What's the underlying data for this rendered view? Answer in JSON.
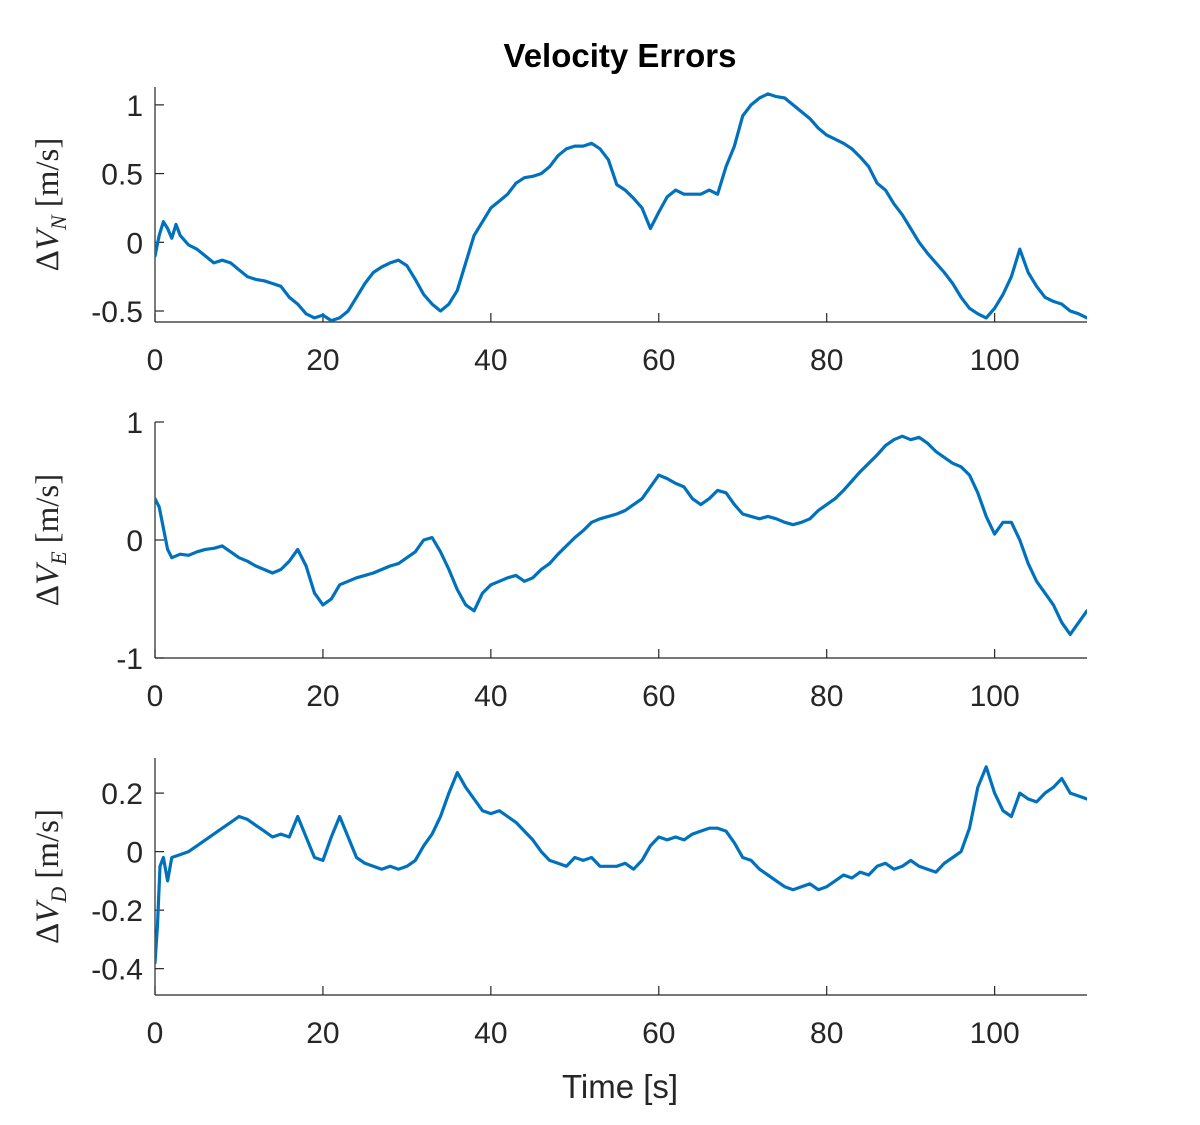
{
  "chart_data": [
    {
      "type": "line",
      "title": "Velocity Errors",
      "xlabel": "",
      "ylabel": {
        "delta": "Δ",
        "symbol": "V",
        "subscript": "N",
        "units": "[m/s]"
      },
      "xlim": [
        0,
        111
      ],
      "ylim": [
        -0.58,
        1.13
      ],
      "xticks": [
        0,
        20,
        40,
        60,
        80,
        100
      ],
      "xtick_labels": [
        "0",
        "20",
        "40",
        "60",
        "80",
        "100"
      ],
      "yticks": [
        -0.5,
        0,
        0.5,
        1
      ],
      "ytick_labels": [
        "-0.5",
        "0",
        "0.5",
        "1"
      ],
      "color": "#0072BD",
      "series": [
        {
          "name": "ΔV_N",
          "x": [
            0,
            0.5,
            1,
            1.5,
            2,
            2.5,
            3,
            4,
            5,
            6,
            7,
            8,
            9,
            10,
            11,
            12,
            13,
            14,
            15,
            16,
            17,
            18,
            19,
            20,
            21,
            22,
            23,
            24,
            25,
            26,
            27,
            28,
            29,
            30,
            31,
            32,
            33,
            34,
            35,
            36,
            37,
            38,
            39,
            40,
            41,
            42,
            43,
            44,
            45,
            46,
            47,
            48,
            49,
            50,
            51,
            52,
            53,
            54,
            55,
            56,
            57,
            58,
            59,
            60,
            61,
            62,
            63,
            64,
            65,
            66,
            67,
            68,
            69,
            70,
            71,
            72,
            73,
            74,
            75,
            76,
            77,
            78,
            79,
            80,
            81,
            82,
            83,
            84,
            85,
            86,
            87,
            88,
            89,
            90,
            91,
            92,
            93,
            94,
            95,
            96,
            97,
            98,
            99,
            100,
            101,
            102,
            103,
            104,
            105,
            106,
            107,
            108,
            109,
            110,
            111
          ],
          "y": [
            -0.1,
            0.05,
            0.15,
            0.1,
            0.03,
            0.13,
            0.05,
            -0.02,
            -0.05,
            -0.1,
            -0.15,
            -0.13,
            -0.15,
            -0.2,
            -0.25,
            -0.27,
            -0.28,
            -0.3,
            -0.32,
            -0.4,
            -0.45,
            -0.52,
            -0.55,
            -0.53,
            -0.57,
            -0.55,
            -0.5,
            -0.4,
            -0.3,
            -0.22,
            -0.18,
            -0.15,
            -0.13,
            -0.17,
            -0.27,
            -0.38,
            -0.45,
            -0.5,
            -0.45,
            -0.35,
            -0.15,
            0.05,
            0.15,
            0.25,
            0.3,
            0.35,
            0.43,
            0.47,
            0.48,
            0.5,
            0.55,
            0.63,
            0.68,
            0.7,
            0.7,
            0.72,
            0.68,
            0.6,
            0.42,
            0.38,
            0.32,
            0.25,
            0.1,
            0.22,
            0.33,
            0.38,
            0.35,
            0.35,
            0.35,
            0.38,
            0.35,
            0.55,
            0.7,
            0.92,
            1.0,
            1.05,
            1.08,
            1.06,
            1.05,
            1.0,
            0.95,
            0.9,
            0.83,
            0.78,
            0.75,
            0.72,
            0.68,
            0.62,
            0.55,
            0.43,
            0.38,
            0.28,
            0.2,
            0.1,
            0.0,
            -0.08,
            -0.15,
            -0.22,
            -0.3,
            -0.4,
            -0.48,
            -0.52,
            -0.55,
            -0.48,
            -0.38,
            -0.25,
            -0.05,
            -0.22,
            -0.32,
            -0.4,
            -0.43,
            -0.45,
            -0.5,
            -0.52,
            -0.55
          ]
        }
      ]
    },
    {
      "type": "line",
      "title": "",
      "xlabel": "",
      "ylabel": {
        "delta": "Δ",
        "symbol": "V",
        "subscript": "E",
        "units": "[m/s]"
      },
      "xlim": [
        0,
        111
      ],
      "ylim": [
        -1,
        1
      ],
      "xticks": [
        0,
        20,
        40,
        60,
        80,
        100
      ],
      "xtick_labels": [
        "0",
        "20",
        "40",
        "60",
        "80",
        "100"
      ],
      "yticks": [
        -1,
        0,
        1
      ],
      "ytick_labels": [
        "-1",
        "0",
        "1"
      ],
      "color": "#0072BD",
      "series": [
        {
          "name": "ΔV_E",
          "x": [
            0,
            0.5,
            1,
            1.5,
            2,
            3,
            4,
            5,
            6,
            7,
            8,
            9,
            10,
            11,
            12,
            13,
            14,
            15,
            16,
            17,
            18,
            19,
            20,
            21,
            22,
            23,
            24,
            25,
            26,
            27,
            28,
            29,
            30,
            31,
            32,
            33,
            34,
            35,
            36,
            37,
            38,
            39,
            40,
            41,
            42,
            43,
            44,
            45,
            46,
            47,
            48,
            49,
            50,
            51,
            52,
            53,
            54,
            55,
            56,
            57,
            58,
            59,
            60,
            61,
            62,
            63,
            64,
            65,
            66,
            67,
            68,
            69,
            70,
            71,
            72,
            73,
            74,
            75,
            76,
            77,
            78,
            79,
            80,
            81,
            82,
            83,
            84,
            85,
            86,
            87,
            88,
            89,
            90,
            91,
            92,
            93,
            94,
            95,
            96,
            97,
            98,
            99,
            100,
            101,
            102,
            103,
            104,
            105,
            106,
            107,
            108,
            109,
            110,
            111
          ],
          "y": [
            0.35,
            0.28,
            0.1,
            -0.08,
            -0.15,
            -0.12,
            -0.13,
            -0.1,
            -0.08,
            -0.07,
            -0.05,
            -0.1,
            -0.15,
            -0.18,
            -0.22,
            -0.25,
            -0.28,
            -0.25,
            -0.18,
            -0.08,
            -0.22,
            -0.45,
            -0.55,
            -0.5,
            -0.38,
            -0.35,
            -0.32,
            -0.3,
            -0.28,
            -0.25,
            -0.22,
            -0.2,
            -0.15,
            -0.1,
            0.0,
            0.02,
            -0.1,
            -0.25,
            -0.42,
            -0.55,
            -0.6,
            -0.45,
            -0.38,
            -0.35,
            -0.32,
            -0.3,
            -0.35,
            -0.32,
            -0.25,
            -0.2,
            -0.12,
            -0.05,
            0.02,
            0.08,
            0.15,
            0.18,
            0.2,
            0.22,
            0.25,
            0.3,
            0.35,
            0.45,
            0.55,
            0.52,
            0.48,
            0.45,
            0.35,
            0.3,
            0.35,
            0.42,
            0.4,
            0.3,
            0.22,
            0.2,
            0.18,
            0.2,
            0.18,
            0.15,
            0.13,
            0.15,
            0.18,
            0.25,
            0.3,
            0.35,
            0.42,
            0.5,
            0.58,
            0.65,
            0.72,
            0.8,
            0.85,
            0.88,
            0.85,
            0.87,
            0.82,
            0.75,
            0.7,
            0.65,
            0.62,
            0.55,
            0.4,
            0.2,
            0.05,
            0.15,
            0.15,
            0.0,
            -0.2,
            -0.35,
            -0.45,
            -0.55,
            -0.7,
            -0.8,
            -0.7,
            -0.6
          ]
        }
      ]
    },
    {
      "type": "line",
      "title": "",
      "xlabel": "Time [s]",
      "ylabel": {
        "delta": "Δ",
        "symbol": "V",
        "subscript": "D",
        "units": "[m/s]"
      },
      "xlim": [
        0,
        111
      ],
      "ylim": [
        -0.49,
        0.32
      ],
      "xticks": [
        0,
        20,
        40,
        60,
        80,
        100
      ],
      "xtick_labels": [
        "0",
        "20",
        "40",
        "60",
        "80",
        "100"
      ],
      "yticks": [
        -0.4,
        -0.2,
        0,
        0.2
      ],
      "ytick_labels": [
        "-0.4",
        "-0.2",
        "0",
        "0.2"
      ],
      "color": "#0072BD",
      "series": [
        {
          "name": "ΔV_D",
          "x": [
            0,
            0.3,
            0.6,
            1,
            1.5,
            2,
            3,
            4,
            5,
            6,
            7,
            8,
            9,
            10,
            11,
            12,
            13,
            14,
            15,
            16,
            17,
            18,
            19,
            20,
            21,
            22,
            23,
            24,
            25,
            26,
            27,
            28,
            29,
            30,
            31,
            32,
            33,
            34,
            35,
            36,
            37,
            38,
            39,
            40,
            41,
            42,
            43,
            44,
            45,
            46,
            47,
            48,
            49,
            50,
            51,
            52,
            53,
            54,
            55,
            56,
            57,
            58,
            59,
            60,
            61,
            62,
            63,
            64,
            65,
            66,
            67,
            68,
            69,
            70,
            71,
            72,
            73,
            74,
            75,
            76,
            77,
            78,
            79,
            80,
            81,
            82,
            83,
            84,
            85,
            86,
            87,
            88,
            89,
            90,
            91,
            92,
            93,
            94,
            95,
            96,
            97,
            98,
            99,
            100,
            101,
            102,
            103,
            104,
            105,
            106,
            107,
            108,
            109,
            110,
            111
          ],
          "y": [
            -0.38,
            -0.25,
            -0.05,
            -0.02,
            -0.1,
            -0.02,
            -0.01,
            0.0,
            0.02,
            0.04,
            0.06,
            0.08,
            0.1,
            0.12,
            0.11,
            0.09,
            0.07,
            0.05,
            0.06,
            0.05,
            0.12,
            0.05,
            -0.02,
            -0.03,
            0.05,
            0.12,
            0.05,
            -0.02,
            -0.04,
            -0.05,
            -0.06,
            -0.05,
            -0.06,
            -0.05,
            -0.03,
            0.02,
            0.06,
            0.12,
            0.2,
            0.27,
            0.22,
            0.18,
            0.14,
            0.13,
            0.14,
            0.12,
            0.1,
            0.07,
            0.04,
            0.0,
            -0.03,
            -0.04,
            -0.05,
            -0.02,
            -0.03,
            -0.02,
            -0.05,
            -0.05,
            -0.05,
            -0.04,
            -0.06,
            -0.03,
            0.02,
            0.05,
            0.04,
            0.05,
            0.04,
            0.06,
            0.07,
            0.08,
            0.08,
            0.07,
            0.03,
            -0.02,
            -0.03,
            -0.06,
            -0.08,
            -0.1,
            -0.12,
            -0.13,
            -0.12,
            -0.11,
            -0.13,
            -0.12,
            -0.1,
            -0.08,
            -0.09,
            -0.07,
            -0.08,
            -0.05,
            -0.04,
            -0.06,
            -0.05,
            -0.03,
            -0.05,
            -0.06,
            -0.07,
            -0.04,
            -0.02,
            0.0,
            0.08,
            0.22,
            0.29,
            0.2,
            0.14,
            0.12,
            0.2,
            0.18,
            0.17,
            0.2,
            0.22,
            0.25,
            0.2,
            0.19,
            0.18
          ]
        }
      ]
    }
  ]
}
